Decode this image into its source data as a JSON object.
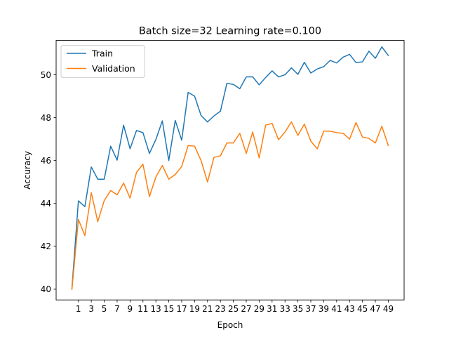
{
  "chart_data": {
    "type": "line",
    "title": "Batch size=32 Learning rate=0.100",
    "xlabel": "Epoch",
    "ylabel": "Accuracy",
    "xlim": [
      -2.45,
      51.45
    ],
    "ylim": [
      39.5,
      51.6
    ],
    "xticks": [
      1,
      3,
      5,
      7,
      9,
      11,
      13,
      15,
      17,
      19,
      21,
      23,
      25,
      27,
      29,
      31,
      33,
      35,
      37,
      39,
      41,
      43,
      45,
      47,
      49
    ],
    "yticks": [
      40,
      42,
      44,
      46,
      48,
      50
    ],
    "grid": false,
    "legend_position": "top-left",
    "x": [
      0,
      1,
      2,
      3,
      4,
      5,
      6,
      7,
      8,
      9,
      10,
      11,
      12,
      13,
      14,
      15,
      16,
      17,
      18,
      19,
      20,
      21,
      22,
      23,
      24,
      25,
      26,
      27,
      28,
      29,
      30,
      31,
      32,
      33,
      34,
      35,
      36,
      37,
      38,
      39,
      40,
      41,
      42,
      43,
      44,
      45,
      46,
      47,
      48,
      49
    ],
    "series": [
      {
        "name": "Train",
        "color": "#1f77b4",
        "values": [
          40.05,
          44.12,
          43.85,
          45.7,
          45.13,
          45.13,
          46.67,
          46.02,
          47.65,
          46.55,
          47.4,
          47.3,
          46.33,
          46.98,
          47.85,
          46.0,
          47.87,
          46.95,
          49.18,
          49.0,
          48.1,
          47.8,
          48.08,
          48.3,
          49.6,
          49.55,
          49.35,
          49.9,
          49.9,
          49.53,
          49.87,
          50.18,
          49.9,
          50.0,
          50.32,
          50.02,
          50.58,
          50.08,
          50.27,
          50.38,
          50.67,
          50.55,
          50.82,
          50.95,
          50.57,
          50.6,
          51.1,
          50.77,
          51.3,
          50.9
        ]
      },
      {
        "name": "Validation",
        "color": "#ff7f0e",
        "values": [
          40.0,
          43.25,
          42.5,
          44.5,
          43.15,
          44.13,
          44.6,
          44.4,
          44.95,
          44.25,
          45.45,
          45.83,
          44.32,
          45.23,
          45.77,
          45.13,
          45.35,
          45.72,
          46.7,
          46.67,
          46.0,
          45.0,
          46.15,
          46.22,
          46.82,
          46.82,
          47.27,
          46.33,
          47.33,
          46.12,
          47.65,
          47.73,
          46.97,
          47.33,
          47.8,
          47.17,
          47.7,
          46.9,
          46.55,
          47.37,
          47.37,
          47.3,
          47.27,
          47.0,
          47.77,
          47.1,
          47.03,
          46.82,
          47.6,
          46.7
        ]
      }
    ]
  }
}
